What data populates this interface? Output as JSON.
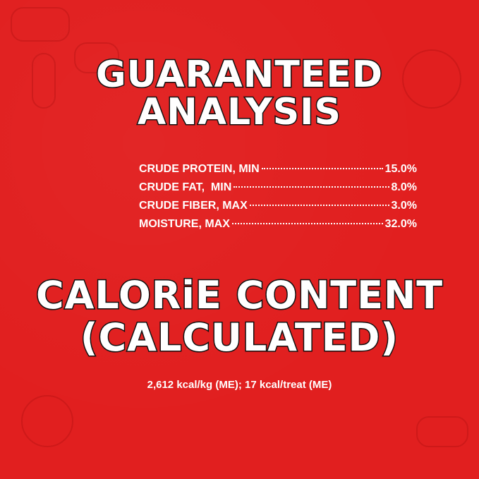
{
  "background_color": "#e11f1f",
  "guaranteed_analysis": {
    "title_line1": "GUARANTEED",
    "title_line2": "ANALYSIS",
    "rows": [
      {
        "label": "CRUDE PROTEIN, MIN",
        "value": "15.0%"
      },
      {
        "label": "CRUDE FAT,  MIN",
        "value": "8.0%"
      },
      {
        "label": "CRUDE FIBER, MAX",
        "value": "3.0%"
      },
      {
        "label": "MOISTURE, MAX",
        "value": "32.0%"
      }
    ]
  },
  "calorie_content": {
    "title_line1": "CALORiE CONTENT",
    "title_line2": "(CALCULATED)",
    "text": "2,612 kcal/kg (ME); 17 kcal/treat (ME)"
  }
}
